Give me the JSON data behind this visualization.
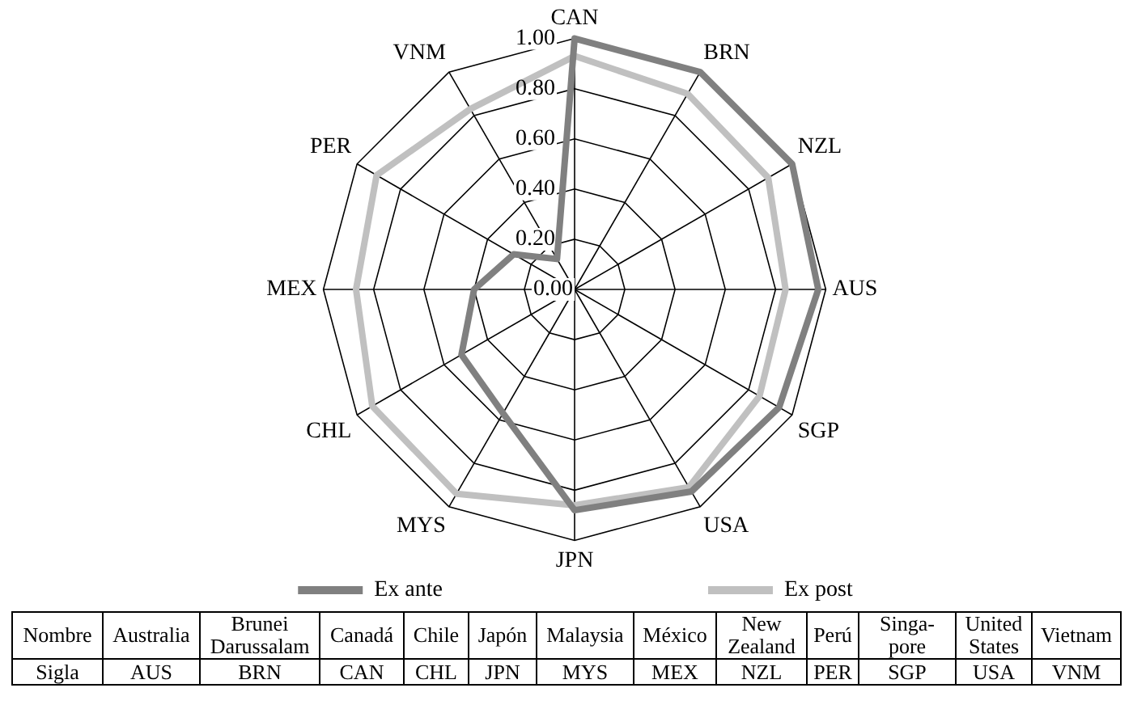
{
  "chart_data": [
    {
      "type": "radar",
      "categories": [
        "CAN",
        "BRN",
        "NZL",
        "AUS",
        "SGP",
        "USA",
        "JPN",
        "MYS",
        "CHL",
        "MEX",
        "PER",
        "VNM"
      ],
      "series": [
        {
          "name": "Ex ante",
          "color": "#808080",
          "values": [
            1.0,
            1.0,
            1.0,
            0.97,
            0.94,
            0.93,
            0.88,
            0.57,
            0.52,
            0.4,
            0.28,
            0.14
          ]
        },
        {
          "name": "Ex post",
          "color": "#c0c0c0",
          "values": [
            0.93,
            0.9,
            0.89,
            0.84,
            0.85,
            0.91,
            0.86,
            0.94,
            0.93,
            0.87,
            0.91,
            0.83
          ]
        }
      ],
      "ylim": [
        0,
        1
      ],
      "yticks": [
        {
          "value": 0,
          "label": "0.00"
        },
        {
          "value": 0.2,
          "label": "0.20"
        },
        {
          "value": 0.4,
          "label": "0.40"
        },
        {
          "value": 0.6,
          "label": "0.60"
        },
        {
          "value": 0.8,
          "label": "0.80"
        },
        {
          "value": 1,
          "label": "1.00"
        }
      ],
      "grid": true,
      "legend": "bottom"
    },
    {
      "type": "other",
      "y_categories": [
        "Nombre",
        "Sigla"
      ],
      "cell_labels": [
        [
          "Australia",
          "Brunei Darussalam",
          "Canadá",
          "Chile",
          "Japón",
          "Malaysia",
          "México",
          "New Zealand",
          "Perú",
          "Singa-pore",
          "United States",
          "Vietnam"
        ],
        [
          "AUS",
          "BRN",
          "CAN",
          "CHL",
          "JPN",
          "MYS",
          "MEX",
          "NZL",
          "PER",
          "SGP",
          "USA",
          "VNM"
        ]
      ]
    }
  ]
}
